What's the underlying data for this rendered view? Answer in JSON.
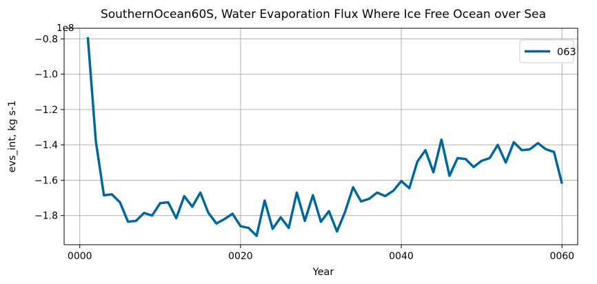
{
  "chart_data": {
    "type": "line",
    "title": "SouthernOcean60S, Water Evaporation Flux Where Ice Free Ocean over Sea",
    "xlabel": "Year",
    "ylabel": "evs_int, kg s-1",
    "offset_text": "1e8",
    "scale": 100000000,
    "xlim": [
      -1.95,
      61.95
    ],
    "ylim": [
      -1.965,
      -0.74
    ],
    "xticks": [
      0,
      20,
      40,
      60
    ],
    "xtick_labels": [
      "0000",
      "0020",
      "0040",
      "0060"
    ],
    "yticks": [
      -1.8,
      -1.6,
      -1.4,
      -1.2,
      -1.0,
      -0.8
    ],
    "ytick_labels": [
      "−1.8",
      "−1.6",
      "−1.4",
      "−1.2",
      "−1.0",
      "−0.8"
    ],
    "grid": true,
    "legend_position": "upper right",
    "series": [
      {
        "name": "063",
        "color": "#0066a0",
        "x": [
          1,
          2,
          3,
          4,
          5,
          6,
          7,
          8,
          9,
          10,
          11,
          12,
          13,
          14,
          15,
          16,
          17,
          18,
          19,
          20,
          21,
          22,
          23,
          24,
          25,
          26,
          27,
          28,
          29,
          30,
          31,
          32,
          33,
          34,
          35,
          36,
          37,
          38,
          39,
          40,
          41,
          42,
          43,
          44,
          45,
          46,
          47,
          48,
          49,
          50,
          51,
          52,
          53,
          54,
          55,
          56,
          57,
          58,
          59,
          60
        ],
        "y": [
          -0.79,
          -1.38,
          -1.685,
          -1.68,
          -1.725,
          -1.835,
          -1.83,
          -1.785,
          -1.8,
          -1.73,
          -1.725,
          -1.815,
          -1.69,
          -1.75,
          -1.67,
          -1.785,
          -1.845,
          -1.82,
          -1.79,
          -1.86,
          -1.87,
          -1.915,
          -1.715,
          -1.875,
          -1.81,
          -1.87,
          -1.67,
          -1.83,
          -1.685,
          -1.835,
          -1.775,
          -1.89,
          -1.78,
          -1.64,
          -1.72,
          -1.705,
          -1.67,
          -1.69,
          -1.66,
          -1.605,
          -1.645,
          -1.495,
          -1.43,
          -1.555,
          -1.37,
          -1.575,
          -1.475,
          -1.48,
          -1.525,
          -1.49,
          -1.475,
          -1.4,
          -1.5,
          -1.385,
          -1.43,
          -1.425,
          -1.39,
          -1.425,
          -1.44,
          -1.62
        ]
      }
    ]
  }
}
